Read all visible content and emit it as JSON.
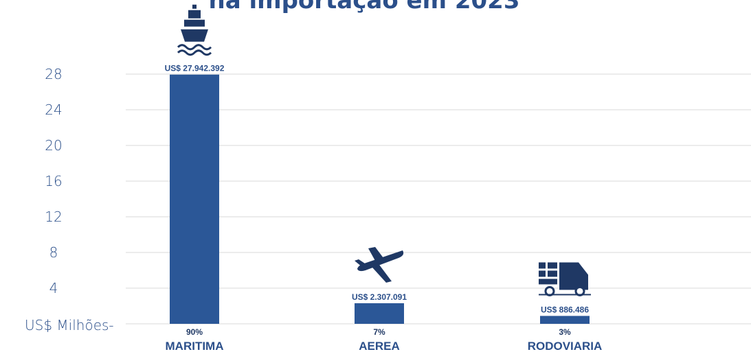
{
  "title": "na importação em 2023",
  "chart_data": {
    "type": "bar",
    "title": "na importação em 2023",
    "ylabel": "US$ Milhões",
    "y_zero_label": "US$ Milhões-",
    "ylim": [
      0,
      28
    ],
    "yticks": [
      4,
      8,
      12,
      16,
      20,
      24,
      28
    ],
    "grid": true,
    "categories": [
      "MARITIMA",
      "AEREA",
      "RODOVIARIA"
    ],
    "values": [
      27.942392,
      2.307091,
      0.886486
    ],
    "value_labels": [
      "US$ 27.942.392",
      "US$ 2.307.091",
      "US$ 886.486"
    ],
    "percent_labels": [
      "90%",
      "7%",
      "3%"
    ],
    "icons": [
      "ship-icon",
      "airplane-icon",
      "truck-icon"
    ],
    "bar_color": "#2b5797"
  }
}
